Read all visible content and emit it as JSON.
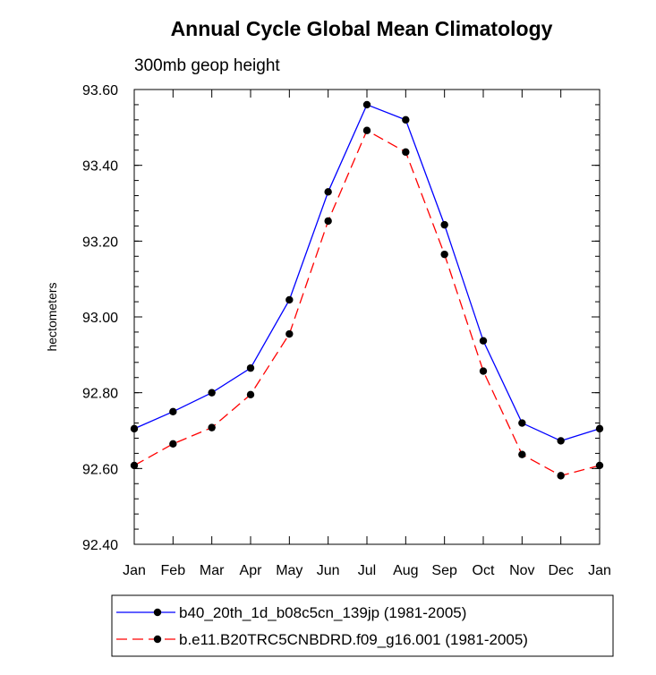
{
  "chart_data": {
    "type": "line",
    "title": "Annual Cycle Global Mean Climatology",
    "subtitle": "300mb geop height",
    "xlabel": "",
    "ylabel": "hectometers",
    "categories": [
      "Jan",
      "Feb",
      "Mar",
      "Apr",
      "May",
      "Jun",
      "Jul",
      "Aug",
      "Sep",
      "Oct",
      "Nov",
      "Dec",
      "Jan"
    ],
    "ylim": [
      92.4,
      93.6
    ],
    "yticks": [
      "92.40",
      "92.60",
      "92.80",
      "93.00",
      "93.20",
      "93.40",
      "93.60"
    ],
    "ytick_values": [
      92.4,
      92.6,
      92.8,
      93.0,
      93.2,
      93.4,
      93.6
    ],
    "grid": false,
    "legend_position": "bottom",
    "series": [
      {
        "name": "b40_20th_1d_b08c5cn_139jp (1981-2005)",
        "color": "#0000ff",
        "dash": "solid",
        "values": [
          92.705,
          92.75,
          92.8,
          92.865,
          93.045,
          93.33,
          93.56,
          93.52,
          93.243,
          92.937,
          92.72,
          92.673,
          92.705
        ]
      },
      {
        "name": "b.e11.B20TRC5CNBDRD.f09_g16.001 (1981-2005)",
        "color": "#ff0000",
        "dash": "dashed",
        "values": [
          92.608,
          92.665,
          92.708,
          92.795,
          92.955,
          93.253,
          93.492,
          93.435,
          93.165,
          92.857,
          92.637,
          92.581,
          92.608
        ]
      }
    ]
  }
}
